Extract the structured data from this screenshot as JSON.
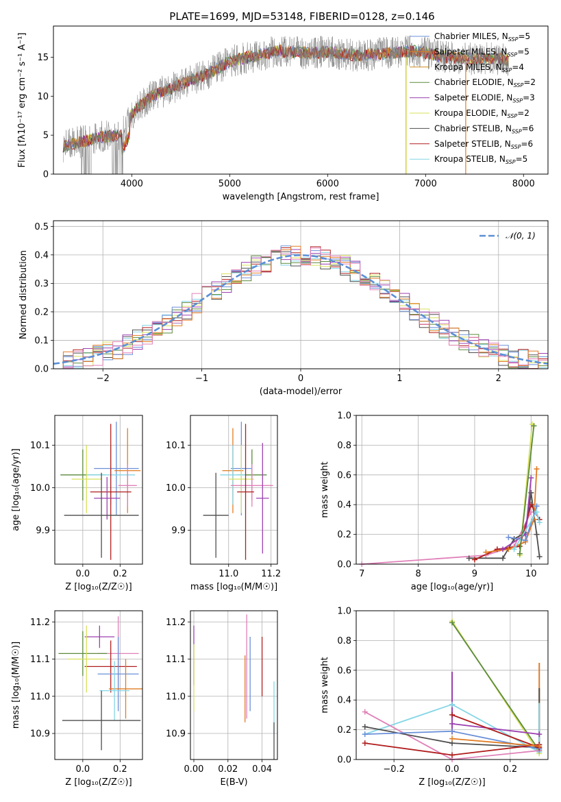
{
  "figure_title": "PLATE=1699, MJD=53148, FIBERID=0128, z=0.146",
  "colors": {
    "chabrier_miles": "#6a8fd8",
    "salpeter_miles": "#e07b22",
    "kroupa_miles": "#c78a1e",
    "chabrier_elodie": "#5a8a3c",
    "salpeter_elodie": "#9b3fb0",
    "kroupa_elodie": "#d7e05a",
    "chabrier_stelib": "#4d4d4d",
    "salpeter_stelib": "#b01c1c",
    "kroupa_stelib": "#84d6e6",
    "pink": "#e080b8",
    "gaussian": "#5b8fd6"
  },
  "chart_data": [
    {
      "id": "spectrum",
      "type": "line",
      "title": "PLATE=1699, MJD=53148, FIBERID=0128, z=0.146",
      "xlabel": "wavelength [Angstrom, rest frame]",
      "ylabel": "Flux [fλ10⁻¹⁷ erg cm⁻² s⁻¹ A⁻¹]",
      "xlim": [
        3200,
        8250
      ],
      "ylim": [
        0,
        19
      ],
      "xticks": [
        "4000",
        "5000",
        "6000",
        "7000",
        "8000"
      ],
      "yticks": [
        "0",
        "5",
        "10",
        "15"
      ],
      "grid": false,
      "legend_position": "top-right",
      "legend": [
        {
          "name": "Chabrier MILES, N",
          "sub": "SSP",
          "suffix": "=5",
          "color": "#6a8fd8"
        },
        {
          "name": "Salpeter MILES, N",
          "sub": "SSP",
          "suffix": "=5",
          "color": "#e07b22"
        },
        {
          "name": "Kroupa MILES, N",
          "sub": "SSP",
          "suffix": "=4",
          "color": "#c78a1e"
        },
        {
          "name": "Chabrier ELODIE, N",
          "sub": "SSP",
          "suffix": "=2",
          "color": "#5a8a3c"
        },
        {
          "name": "Salpeter ELODIE, N",
          "sub": "SSP",
          "suffix": "=3",
          "color": "#9b3fb0"
        },
        {
          "name": "Kroupa ELODIE, N",
          "sub": "SSP",
          "suffix": "=2",
          "color": "#d7e05a"
        },
        {
          "name": "Chabrier STELIB, N",
          "sub": "SSP",
          "suffix": "=6",
          "color": "#4d4d4d"
        },
        {
          "name": "Salpeter STELIB, N",
          "sub": "SSP",
          "suffix": "=6",
          "color": "#b01c1c"
        },
        {
          "name": "Kroupa STELIB, N",
          "sub": "SSP",
          "suffix": "=5",
          "color": "#84d6e6"
        }
      ],
      "continuum": {
        "x": [
          3300,
          3500,
          3700,
          3900,
          4000,
          4200,
          4500,
          4800,
          5000,
          5200,
          5500,
          5800,
          6000,
          6300,
          6600,
          6900,
          7200,
          7500,
          7700,
          7850
        ],
        "y": [
          3.6,
          4.2,
          4.8,
          5.0,
          7.8,
          10.0,
          11.5,
          13.0,
          14.5,
          15.0,
          15.8,
          15.5,
          15.7,
          15.2,
          15.5,
          15.8,
          15.0,
          14.8,
          14.9,
          14.5
        ]
      }
    },
    {
      "id": "residuals",
      "type": "line",
      "xlabel": "(data-model)/error",
      "ylabel": "Normed distribution",
      "xlim": [
        -2.5,
        2.5
      ],
      "ylim": [
        0,
        0.52
      ],
      "xticks": [
        "−2",
        "−1",
        "0",
        "1",
        "2"
      ],
      "yticks": [
        "0.0",
        "0.1",
        "0.2",
        "0.3",
        "0.4",
        "0.5"
      ],
      "grid": true,
      "legend_position": "top-right",
      "legend_label": "𝒩(0, 1)"
    },
    {
      "id": "age_vs_Z",
      "type": "scatter",
      "xlabel": "Z [log₁₀(Z/Z☉)]",
      "ylabel": "age  [log₁₀(age/yr)]",
      "xlim": [
        -0.15,
        0.32
      ],
      "ylim": [
        9.82,
        10.17
      ],
      "xticks": [
        "0.0",
        "0.2"
      ],
      "yticks": [
        "9.9",
        "10.0",
        "10.1"
      ],
      "grid": true,
      "points": [
        {
          "x": 0.18,
          "y": 10.045,
          "xerr": 0.12,
          "yerr": 0.11,
          "color": "#6a8fd8"
        },
        {
          "x": 0.24,
          "y": 10.04,
          "xerr": 0.07,
          "yerr": 0.1,
          "color": "#e07b22"
        },
        {
          "x": 0.0,
          "y": 10.03,
          "xerr": 0.12,
          "yerr": 0.06,
          "color": "#5a8a3c"
        },
        {
          "x": 0.15,
          "y": 10.03,
          "xerr": 0.13,
          "yerr": 0.07,
          "color": "#84d6e6"
        },
        {
          "x": 0.02,
          "y": 10.02,
          "xerr": 0.08,
          "yerr": 0.08,
          "color": "#d7e05a"
        },
        {
          "x": 0.24,
          "y": 10.005,
          "xerr": 0.05,
          "yerr": 0.05,
          "color": "#e080b8"
        },
        {
          "x": 0.15,
          "y": 9.99,
          "xerr": 0.11,
          "yerr": 0.16,
          "color": "#b01c1c"
        },
        {
          "x": 0.13,
          "y": 9.975,
          "xerr": 0.07,
          "yerr": 0.05,
          "color": "#9b3fb0"
        },
        {
          "x": 0.1,
          "y": 9.935,
          "xerr": 0.2,
          "yerr": 0.1,
          "color": "#4d4d4d"
        }
      ]
    },
    {
      "id": "age_vs_mass",
      "type": "scatter",
      "xlabel": "mass [log₁₀(M/M☉)]",
      "ylabel": "",
      "xlim": [
        10.82,
        11.23
      ],
      "ylim": [
        9.82,
        10.17
      ],
      "xticks": [
        "11.0",
        "11.2"
      ],
      "yticks": [
        "9.9",
        "10.0",
        "10.1"
      ],
      "grid": true,
      "points": [
        {
          "x": 11.06,
          "y": 10.045,
          "xerr": 0.05,
          "yerr": 0.11,
          "color": "#6a8fd8"
        },
        {
          "x": 11.02,
          "y": 10.04,
          "xerr": 0.05,
          "yerr": 0.1,
          "color": "#e07b22"
        },
        {
          "x": 11.11,
          "y": 10.03,
          "xerr": 0.07,
          "yerr": 0.06,
          "color": "#5a8a3c"
        },
        {
          "x": 11.02,
          "y": 10.03,
          "xerr": 0.06,
          "yerr": 0.07,
          "color": "#84d6e6"
        },
        {
          "x": 11.06,
          "y": 10.02,
          "xerr": 0.06,
          "yerr": 0.08,
          "color": "#d7e05a"
        },
        {
          "x": 11.11,
          "y": 10.005,
          "xerr": 0.1,
          "yerr": 0.05,
          "color": "#e080b8"
        },
        {
          "x": 11.08,
          "y": 9.99,
          "xerr": 0.04,
          "yerr": 0.16,
          "color": "#b01c1c"
        },
        {
          "x": 11.16,
          "y": 9.975,
          "xerr": 0.03,
          "yerr": 0.13,
          "color": "#9b3fb0"
        },
        {
          "x": 10.94,
          "y": 9.935,
          "xerr": 0.06,
          "yerr": 0.1,
          "color": "#4d4d4d"
        }
      ]
    },
    {
      "id": "massweight_vs_age",
      "type": "line",
      "xlabel": "age  [log₁₀(age/yr)]",
      "ylabel": "mass weight",
      "xlim": [
        6.9,
        10.3
      ],
      "ylim": [
        0,
        1
      ],
      "xticks": [
        "7",
        "8",
        "9",
        "10"
      ],
      "yticks": [
        "0.0",
        "0.2",
        "0.4",
        "0.6",
        "0.8",
        "1.0"
      ],
      "grid": true,
      "series": [
        {
          "color": "#e080b8",
          "x": [
            7.0,
            9.2,
            9.7,
            10.0
          ],
          "y": [
            0.0,
            0.06,
            0.12,
            0.35
          ]
        },
        {
          "color": "#4d4d4d",
          "x": [
            8.9,
            9.5,
            9.7,
            9.9,
            10.0,
            10.1,
            10.15
          ],
          "y": [
            0.04,
            0.04,
            0.17,
            0.21,
            0.48,
            0.2,
            0.05
          ]
        },
        {
          "color": "#b01c1c",
          "x": [
            9.0,
            9.4,
            9.8,
            10.0,
            10.15
          ],
          "y": [
            0.03,
            0.1,
            0.12,
            0.4,
            0.3
          ]
        },
        {
          "color": "#e07b22",
          "x": [
            9.2,
            9.6,
            9.9,
            10.05,
            10.1
          ],
          "y": [
            0.08,
            0.1,
            0.15,
            0.3,
            0.64
          ]
        },
        {
          "color": "#9b3fb0",
          "x": [
            9.5,
            9.9,
            10.0
          ],
          "y": [
            0.1,
            0.2,
            0.58
          ]
        },
        {
          "color": "#d7e05a",
          "x": [
            9.8,
            10.02
          ],
          "y": [
            0.06,
            0.94
          ]
        },
        {
          "color": "#6a8fd8",
          "x": [
            9.6,
            9.9,
            10.1
          ],
          "y": [
            0.18,
            0.16,
            0.39
          ]
        },
        {
          "color": "#84d6e6",
          "x": [
            9.7,
            10.1,
            10.15
          ],
          "y": [
            0.1,
            0.35,
            0.28
          ]
        },
        {
          "color": "#5a8a3c",
          "x": [
            9.8,
            10.05
          ],
          "y": [
            0.07,
            0.93
          ]
        }
      ]
    },
    {
      "id": "mass_vs_Z",
      "type": "scatter",
      "xlabel": "Z [log₁₀(Z/Z☉)]",
      "ylabel": "mass [log₁₀(M/M☉)]",
      "xlim": [
        -0.15,
        0.32
      ],
      "ylim": [
        10.83,
        11.23
      ],
      "xticks": [
        "0.0",
        "0.2"
      ],
      "yticks": [
        "10.9",
        "11.0",
        "11.1",
        "11.2"
      ],
      "grid": true,
      "points": [
        {
          "x": 0.19,
          "y": 11.115,
          "xerr": 0.11,
          "yerr": 0.1,
          "color": "#e080b8"
        },
        {
          "x": 0.09,
          "y": 11.16,
          "xerr": 0.08,
          "yerr": 0.03,
          "color": "#9b3fb0"
        },
        {
          "x": 0.0,
          "y": 11.115,
          "xerr": 0.13,
          "yerr": 0.06,
          "color": "#5a8a3c"
        },
        {
          "x": 0.15,
          "y": 11.08,
          "xerr": 0.14,
          "yerr": 0.07,
          "color": "#b01c1c"
        },
        {
          "x": 0.02,
          "y": 11.1,
          "xerr": 0.1,
          "yerr": 0.09,
          "color": "#d7e05a"
        },
        {
          "x": 0.19,
          "y": 11.06,
          "xerr": 0.11,
          "yerr": 0.1,
          "color": "#6a8fd8"
        },
        {
          "x": 0.23,
          "y": 11.02,
          "xerr": 0.09,
          "yerr": 0.08,
          "color": "#e07b22"
        },
        {
          "x": 0.17,
          "y": 11.015,
          "xerr": 0.08,
          "yerr": 0.08,
          "color": "#84d6e6"
        },
        {
          "x": 0.1,
          "y": 10.935,
          "xerr": 0.21,
          "yerr": 0.08,
          "color": "#4d4d4d"
        }
      ]
    },
    {
      "id": "mass_vs_ebv",
      "type": "scatter",
      "xlabel": "E(B-V)",
      "ylabel": "",
      "xlim": [
        -0.002,
        0.049
      ],
      "ylim": [
        10.83,
        11.23
      ],
      "xticks": [
        "0.00",
        "0.02",
        "0.04"
      ],
      "yticks": [
        "10.9",
        "11.0",
        "11.1",
        "11.2"
      ],
      "grid": true,
      "points": [
        {
          "x": 0.0,
          "y": 11.11,
          "xerr": 0.0,
          "yerr": 0.08,
          "color": "#9b3fb0"
        },
        {
          "x": 0.0,
          "y": 11.05,
          "xerr": 0.0,
          "yerr": 0.09,
          "color": "#d7e05a"
        },
        {
          "x": 0.031,
          "y": 11.08,
          "xerr": 0.0,
          "yerr": 0.14,
          "color": "#e080b8"
        },
        {
          "x": 0.03,
          "y": 11.02,
          "xerr": 0.0,
          "yerr": 0.09,
          "color": "#e07b22"
        },
        {
          "x": 0.033,
          "y": 11.06,
          "xerr": 0.0,
          "yerr": 0.1,
          "color": "#6a8fd8"
        },
        {
          "x": 0.04,
          "y": 11.08,
          "xerr": 0.0,
          "yerr": 0.08,
          "color": "#b01c1c"
        },
        {
          "x": 0.047,
          "y": 10.97,
          "xerr": 0.0,
          "yerr": 0.07,
          "color": "#84d6e6"
        },
        {
          "x": 0.047,
          "y": 10.88,
          "xerr": 0.0,
          "yerr": 0.05,
          "color": "#4d4d4d"
        }
      ]
    },
    {
      "id": "massweight_vs_Z",
      "type": "line",
      "xlabel": "Z [log₁₀(Z/Z☉)]",
      "ylabel": "mass weight",
      "xlim": [
        -0.33,
        0.33
      ],
      "ylim": [
        0,
        1
      ],
      "xticks": [
        "−0.2",
        "0.0",
        "0.2"
      ],
      "yticks": [
        "0.0",
        "0.2",
        "0.4",
        "0.6",
        "0.8",
        "1.0"
      ],
      "grid": true,
      "series": [
        {
          "color": "#d7e05a",
          "x": [
            0.0,
            0.3
          ],
          "y": [
            0.93,
            0.04
          ]
        },
        {
          "color": "#5a8a3c",
          "x": [
            0.0,
            0.3
          ],
          "y": [
            0.92,
            0.06
          ]
        },
        {
          "color": "#84d6e6",
          "x": [
            -0.3,
            0.0,
            0.3
          ],
          "y": [
            0.17,
            0.37,
            0.05
          ]
        },
        {
          "color": "#e080b8",
          "x": [
            -0.3,
            0.0,
            0.3
          ],
          "y": [
            0.32,
            0.0,
            0.06
          ]
        },
        {
          "color": "#4d4d4d",
          "x": [
            -0.3,
            0.0,
            0.3
          ],
          "y": [
            0.22,
            0.11,
            0.08
          ]
        },
        {
          "color": "#6a8fd8",
          "x": [
            -0.3,
            0.0,
            0.3
          ],
          "y": [
            0.17,
            0.19,
            0.07
          ]
        },
        {
          "color": "#b01c1c",
          "x": [
            -0.3,
            0.0,
            0.3
          ],
          "y": [
            0.11,
            0.03,
            0.1
          ]
        },
        {
          "color": "#9b3fb0",
          "x": [
            0.0,
            0.3
          ],
          "y": [
            0.24,
            0.17
          ]
        },
        {
          "color": "#b01c1c",
          "x": [
            0.0,
            0.3
          ],
          "y": [
            0.3,
            0.08
          ]
        },
        {
          "color": "#e07b22",
          "x": [
            0.0,
            0.3
          ],
          "y": [
            0.14,
            0.09
          ]
        }
      ],
      "vertical_errors": [
        {
          "x": 0.0,
          "y0": 0.17,
          "y1": 0.59,
          "color": "#9b3fb0"
        },
        {
          "x": 0.3,
          "y0": 0.07,
          "y1": 0.65,
          "color": "#e07b22"
        },
        {
          "x": 0.3,
          "y0": 0.05,
          "y1": 0.48,
          "color": "#4d4d4d"
        },
        {
          "x": 0.3,
          "y0": 0.04,
          "y1": 0.38,
          "color": "#84d6e6"
        }
      ]
    }
  ]
}
